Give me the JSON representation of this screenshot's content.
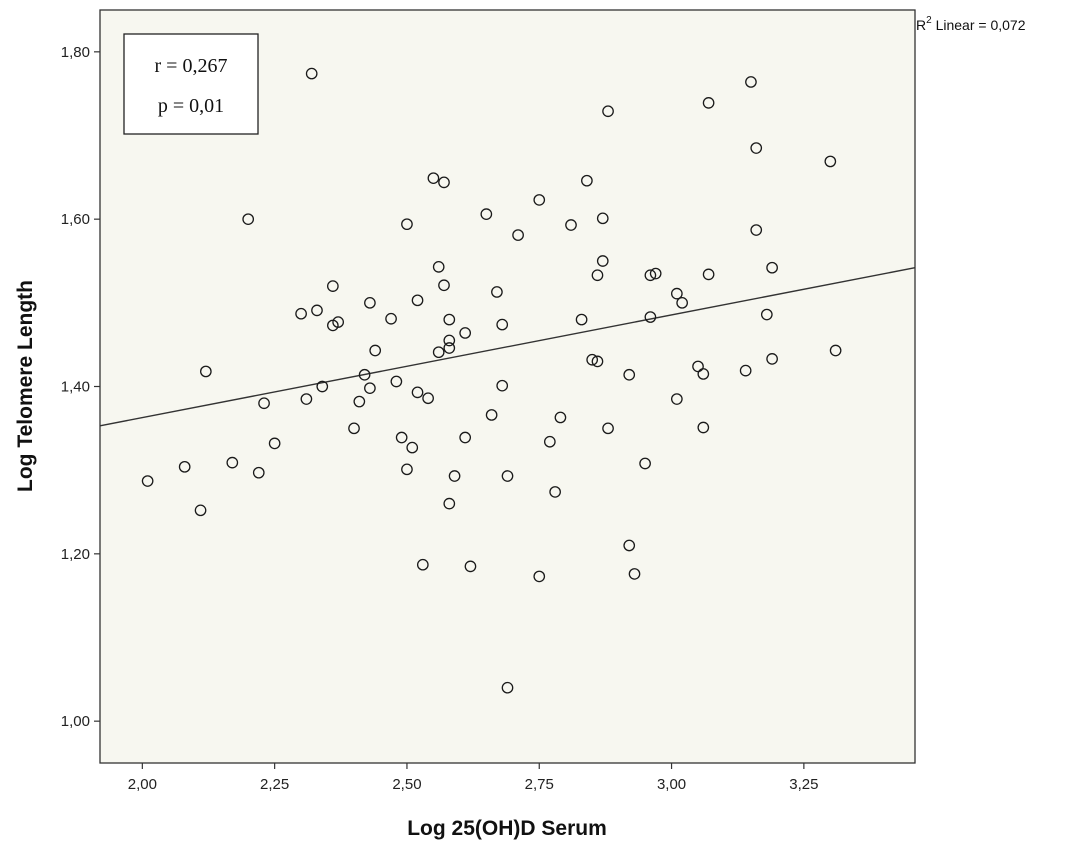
{
  "chart_data": {
    "type": "scatter",
    "xlabel": "Log 25(OH)D Serum",
    "ylabel": "Log Telomere Length",
    "xlim": [
      1.92,
      3.46
    ],
    "ylim": [
      0.95,
      1.85
    ],
    "x_ticks": [
      "2,00",
      "2,25",
      "2,50",
      "2,75",
      "3,00",
      "3,25"
    ],
    "x_tick_values": [
      2.0,
      2.25,
      2.5,
      2.75,
      3.0,
      3.25
    ],
    "y_ticks": [
      "1,00",
      "1,20",
      "1,40",
      "1,60",
      "1,80"
    ],
    "y_tick_values": [
      1.0,
      1.2,
      1.4,
      1.6,
      1.8
    ],
    "grid": false,
    "annotations": {
      "r": "r = 0,267",
      "p": "p = 0,01",
      "r2_prefix": "R",
      "r2_sup": "2",
      "r2_rest": " Linear = 0,072"
    },
    "fit_line": {
      "x": [
        1.92,
        3.46
      ],
      "y": [
        1.353,
        1.542
      ]
    },
    "points": [
      {
        "x": 2.01,
        "y": 1.287
      },
      {
        "x": 2.08,
        "y": 1.304
      },
      {
        "x": 2.11,
        "y": 1.252
      },
      {
        "x": 2.12,
        "y": 1.418
      },
      {
        "x": 2.17,
        "y": 1.309
      },
      {
        "x": 2.2,
        "y": 1.6
      },
      {
        "x": 2.22,
        "y": 1.297
      },
      {
        "x": 2.23,
        "y": 1.38
      },
      {
        "x": 2.25,
        "y": 1.332
      },
      {
        "x": 2.3,
        "y": 1.487
      },
      {
        "x": 2.31,
        "y": 1.385
      },
      {
        "x": 2.32,
        "y": 1.774
      },
      {
        "x": 2.33,
        "y": 1.491
      },
      {
        "x": 2.34,
        "y": 1.4
      },
      {
        "x": 2.36,
        "y": 1.52
      },
      {
        "x": 2.36,
        "y": 1.473
      },
      {
        "x": 2.37,
        "y": 1.477
      },
      {
        "x": 2.4,
        "y": 1.35
      },
      {
        "x": 2.41,
        "y": 1.382
      },
      {
        "x": 2.42,
        "y": 1.414
      },
      {
        "x": 2.43,
        "y": 1.398
      },
      {
        "x": 2.43,
        "y": 1.5
      },
      {
        "x": 2.44,
        "y": 1.443
      },
      {
        "x": 2.47,
        "y": 1.481
      },
      {
        "x": 2.48,
        "y": 1.406
      },
      {
        "x": 2.49,
        "y": 1.339
      },
      {
        "x": 2.5,
        "y": 1.301
      },
      {
        "x": 2.5,
        "y": 1.594
      },
      {
        "x": 2.51,
        "y": 1.327
      },
      {
        "x": 2.52,
        "y": 1.393
      },
      {
        "x": 2.52,
        "y": 1.503
      },
      {
        "x": 2.53,
        "y": 1.187
      },
      {
        "x": 2.54,
        "y": 1.386
      },
      {
        "x": 2.55,
        "y": 1.649
      },
      {
        "x": 2.56,
        "y": 1.543
      },
      {
        "x": 2.56,
        "y": 1.441
      },
      {
        "x": 2.57,
        "y": 1.644
      },
      {
        "x": 2.57,
        "y": 1.521
      },
      {
        "x": 2.58,
        "y": 1.446
      },
      {
        "x": 2.58,
        "y": 1.48
      },
      {
        "x": 2.58,
        "y": 1.26
      },
      {
        "x": 2.58,
        "y": 1.455
      },
      {
        "x": 2.59,
        "y": 1.293
      },
      {
        "x": 2.61,
        "y": 1.339
      },
      {
        "x": 2.61,
        "y": 1.464
      },
      {
        "x": 2.62,
        "y": 1.185
      },
      {
        "x": 2.65,
        "y": 1.606
      },
      {
        "x": 2.66,
        "y": 1.366
      },
      {
        "x": 2.67,
        "y": 1.513
      },
      {
        "x": 2.68,
        "y": 1.401
      },
      {
        "x": 2.68,
        "y": 1.474
      },
      {
        "x": 2.69,
        "y": 1.293
      },
      {
        "x": 2.69,
        "y": 1.04
      },
      {
        "x": 2.71,
        "y": 1.581
      },
      {
        "x": 2.75,
        "y": 1.623
      },
      {
        "x": 2.75,
        "y": 1.173
      },
      {
        "x": 2.77,
        "y": 1.334
      },
      {
        "x": 2.78,
        "y": 1.274
      },
      {
        "x": 2.79,
        "y": 1.363
      },
      {
        "x": 2.81,
        "y": 1.593
      },
      {
        "x": 2.83,
        "y": 1.48
      },
      {
        "x": 2.84,
        "y": 1.646
      },
      {
        "x": 2.85,
        "y": 1.432
      },
      {
        "x": 2.86,
        "y": 1.43
      },
      {
        "x": 2.86,
        "y": 1.533
      },
      {
        "x": 2.87,
        "y": 1.601
      },
      {
        "x": 2.87,
        "y": 1.55
      },
      {
        "x": 2.88,
        "y": 1.729
      },
      {
        "x": 2.88,
        "y": 1.35
      },
      {
        "x": 2.92,
        "y": 1.21
      },
      {
        "x": 2.92,
        "y": 1.414
      },
      {
        "x": 2.93,
        "y": 1.176
      },
      {
        "x": 2.95,
        "y": 1.308
      },
      {
        "x": 2.96,
        "y": 1.533
      },
      {
        "x": 2.96,
        "y": 1.483
      },
      {
        "x": 2.97,
        "y": 1.535
      },
      {
        "x": 3.01,
        "y": 1.385
      },
      {
        "x": 3.01,
        "y": 1.511
      },
      {
        "x": 3.02,
        "y": 1.5
      },
      {
        "x": 3.05,
        "y": 1.424
      },
      {
        "x": 3.06,
        "y": 1.415
      },
      {
        "x": 3.06,
        "y": 1.351
      },
      {
        "x": 3.07,
        "y": 1.739
      },
      {
        "x": 3.07,
        "y": 1.534
      },
      {
        "x": 3.14,
        "y": 1.419
      },
      {
        "x": 3.15,
        "y": 1.764
      },
      {
        "x": 3.16,
        "y": 1.587
      },
      {
        "x": 3.16,
        "y": 1.685
      },
      {
        "x": 3.18,
        "y": 1.486
      },
      {
        "x": 3.19,
        "y": 1.433
      },
      {
        "x": 3.19,
        "y": 1.542
      },
      {
        "x": 3.3,
        "y": 1.669
      },
      {
        "x": 3.31,
        "y": 1.443
      }
    ]
  },
  "colors": {
    "plot_background": "#f7f7f0",
    "marker_stroke": "#1a1a1a",
    "line": "#333333",
    "axis": "#333333"
  }
}
